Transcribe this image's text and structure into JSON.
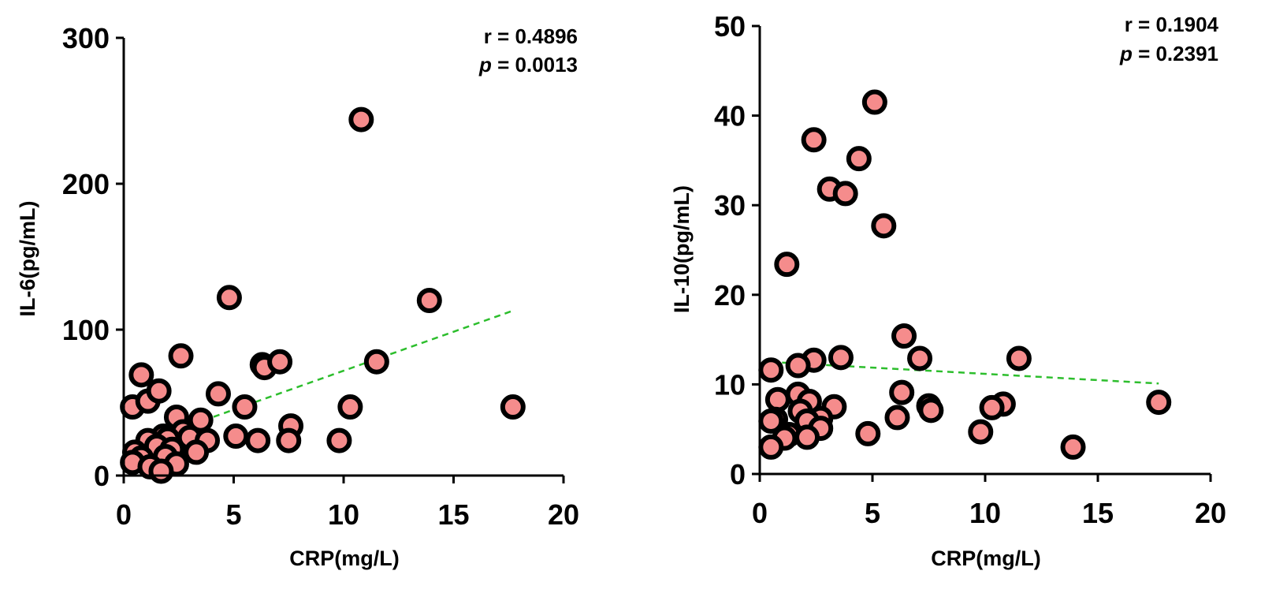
{
  "colors": {
    "point_fill": "#F58C8C",
    "point_stroke": "#000000",
    "trend_line": "#2DBE2D",
    "axis": "#000000"
  },
  "chart_data": [
    {
      "type": "scatter",
      "title": "",
      "xlabel": "CRP(mg/L)",
      "ylabel": "IL-6(pg/mL)",
      "xlim": [
        0,
        20
      ],
      "ylim": [
        0,
        300
      ],
      "xticks": [
        0,
        5,
        10,
        15,
        20
      ],
      "yticks": [
        0,
        100,
        200,
        300
      ],
      "annotations": {
        "r": "r = 0.4896",
        "p_label": "p",
        "p_value": " = 0.0013"
      },
      "trendline": {
        "x": [
          0.3,
          17.7
        ],
        "y": [
          20,
          113
        ]
      },
      "points": [
        {
          "x": 0.4,
          "y": 47
        },
        {
          "x": 0.8,
          "y": 69
        },
        {
          "x": 1.1,
          "y": 51
        },
        {
          "x": 1.6,
          "y": 58
        },
        {
          "x": 2.6,
          "y": 82
        },
        {
          "x": 4.8,
          "y": 122
        },
        {
          "x": 10.8,
          "y": 244
        },
        {
          "x": 13.9,
          "y": 120
        },
        {
          "x": 17.7,
          "y": 47
        },
        {
          "x": 6.3,
          "y": 76
        },
        {
          "x": 6.4,
          "y": 74
        },
        {
          "x": 7.1,
          "y": 78
        },
        {
          "x": 11.5,
          "y": 78
        },
        {
          "x": 4.3,
          "y": 56
        },
        {
          "x": 5.5,
          "y": 47
        },
        {
          "x": 10.3,
          "y": 47
        },
        {
          "x": 2.4,
          "y": 40
        },
        {
          "x": 3.5,
          "y": 38
        },
        {
          "x": 7.6,
          "y": 34
        },
        {
          "x": 2.7,
          "y": 30
        },
        {
          "x": 5.1,
          "y": 27
        },
        {
          "x": 6.1,
          "y": 24
        },
        {
          "x": 7.5,
          "y": 24
        },
        {
          "x": 9.8,
          "y": 24
        },
        {
          "x": 1.8,
          "y": 27
        },
        {
          "x": 2.0,
          "y": 25
        },
        {
          "x": 3.0,
          "y": 26
        },
        {
          "x": 3.8,
          "y": 24
        },
        {
          "x": 1.1,
          "y": 24
        },
        {
          "x": 1.5,
          "y": 20
        },
        {
          "x": 2.2,
          "y": 18
        },
        {
          "x": 3.3,
          "y": 16
        },
        {
          "x": 0.5,
          "y": 16
        },
        {
          "x": 0.8,
          "y": 12
        },
        {
          "x": 1.9,
          "y": 13
        },
        {
          "x": 0.4,
          "y": 9
        },
        {
          "x": 1.2,
          "y": 6
        },
        {
          "x": 2.4,
          "y": 8
        },
        {
          "x": 1.7,
          "y": 3
        }
      ]
    },
    {
      "type": "scatter",
      "title": "",
      "xlabel": "CRP(mg/L)",
      "ylabel": "IL-10(pg/mL)",
      "xlim": [
        0,
        20
      ],
      "ylim": [
        0,
        50
      ],
      "xticks": [
        0,
        5,
        10,
        15,
        20
      ],
      "yticks": [
        0,
        10,
        20,
        30,
        40,
        50
      ],
      "annotations": {
        "r": "r = 0.1904",
        "p_label": "p",
        "p_value": " = 0.2391"
      },
      "trendline": {
        "x": [
          0.5,
          17.7
        ],
        "y": [
          12.5,
          10.1
        ]
      },
      "points": [
        {
          "x": 5.1,
          "y": 41.5
        },
        {
          "x": 2.4,
          "y": 37.3
        },
        {
          "x": 4.4,
          "y": 35.2
        },
        {
          "x": 3.1,
          "y": 31.8
        },
        {
          "x": 3.8,
          "y": 31.3
        },
        {
          "x": 5.5,
          "y": 27.7
        },
        {
          "x": 1.2,
          "y": 23.4
        },
        {
          "x": 6.4,
          "y": 15.4
        },
        {
          "x": 11.5,
          "y": 12.9
        },
        {
          "x": 7.1,
          "y": 12.9
        },
        {
          "x": 3.6,
          "y": 13.0
        },
        {
          "x": 2.4,
          "y": 12.7
        },
        {
          "x": 1.7,
          "y": 12.1
        },
        {
          "x": 0.5,
          "y": 11.6
        },
        {
          "x": 1.7,
          "y": 8.9
        },
        {
          "x": 6.3,
          "y": 9.1
        },
        {
          "x": 0.8,
          "y": 8.3
        },
        {
          "x": 2.2,
          "y": 8.1
        },
        {
          "x": 17.7,
          "y": 8.0
        },
        {
          "x": 10.8,
          "y": 7.8
        },
        {
          "x": 7.5,
          "y": 7.6
        },
        {
          "x": 7.6,
          "y": 7.1
        },
        {
          "x": 10.3,
          "y": 7.4
        },
        {
          "x": 3.3,
          "y": 7.5
        },
        {
          "x": 1.8,
          "y": 7.0
        },
        {
          "x": 2.7,
          "y": 6.2
        },
        {
          "x": 0.7,
          "y": 6.1
        },
        {
          "x": 0.5,
          "y": 5.9
        },
        {
          "x": 6.1,
          "y": 6.3
        },
        {
          "x": 2.1,
          "y": 5.9
        },
        {
          "x": 2.7,
          "y": 5.1
        },
        {
          "x": 4.8,
          "y": 4.5
        },
        {
          "x": 9.8,
          "y": 4.7
        },
        {
          "x": 1.3,
          "y": 4.4
        },
        {
          "x": 2.1,
          "y": 4.1
        },
        {
          "x": 1.1,
          "y": 4.0
        },
        {
          "x": 0.5,
          "y": 3.0
        },
        {
          "x": 13.9,
          "y": 3.0
        }
      ]
    }
  ]
}
